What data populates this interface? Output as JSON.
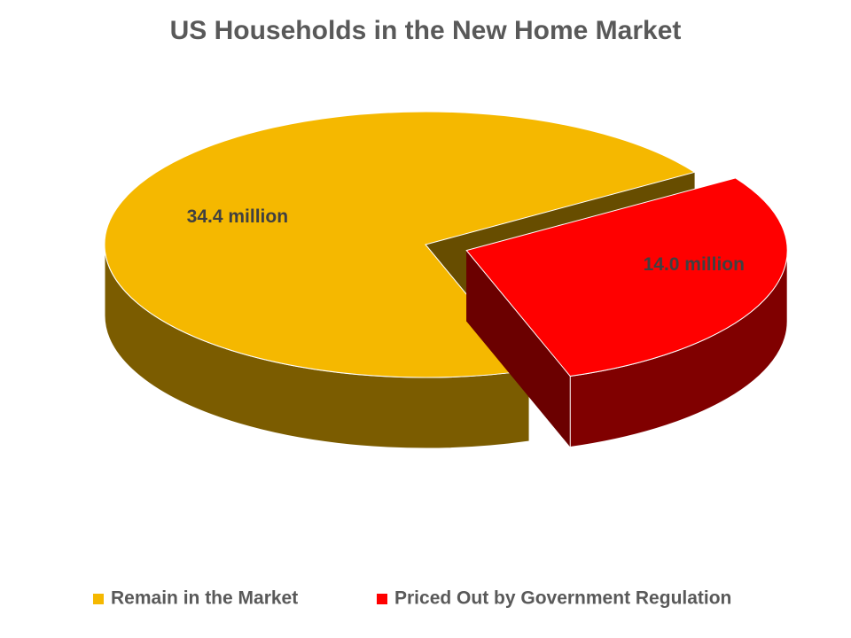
{
  "chart_data": {
    "type": "pie3d",
    "title": "US Households in the New Home Market",
    "categories": [
      "Remain in the Market",
      "Priced Out by Government Regulation"
    ],
    "values": [
      34.4,
      14.0
    ],
    "value_labels": [
      "34.4 million",
      "14.0 million"
    ],
    "colors": [
      "#f5b800",
      "#ff0000"
    ],
    "legend": "bottom"
  }
}
